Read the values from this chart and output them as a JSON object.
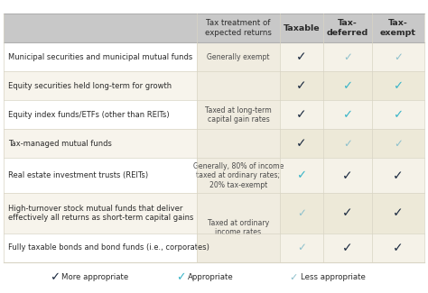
{
  "col_headers": [
    "Tax treatment of\nexpected returns",
    "Taxable",
    "Tax-\ndeferred",
    "Tax-\nexempt"
  ],
  "rows": [
    {
      "label": "Municipal securities and municipal mutual funds",
      "taxable": "more",
      "deferred": "less",
      "exempt": "less",
      "tax_group": 0
    },
    {
      "label": "Equity securities held long-term for growth",
      "taxable": "more",
      "deferred": "appropriate",
      "exempt": "appropriate",
      "tax_group": 1
    },
    {
      "label": "Equity index funds/ETFs (other than REITs)",
      "taxable": "more",
      "deferred": "appropriate",
      "exempt": "appropriate",
      "tax_group": 1
    },
    {
      "label": "Tax-managed mutual funds",
      "taxable": "more",
      "deferred": "less",
      "exempt": "less",
      "tax_group": 1
    },
    {
      "label": "Real estate investment trusts (REITs)",
      "taxable": "appropriate",
      "deferred": "more",
      "exempt": "more",
      "tax_group": 2
    },
    {
      "label": "High-turnover stock mutual funds that deliver\neffectively all returns as short-term capital gains",
      "taxable": "less",
      "deferred": "more",
      "exempt": "more",
      "tax_group": 3
    },
    {
      "label": "Fully taxable bonds and bond funds (i.e., corporates)",
      "taxable": "less",
      "deferred": "more",
      "exempt": "more",
      "tax_group": 3
    }
  ],
  "tax_groups": [
    {
      "rows": [
        0,
        0
      ],
      "text": "Generally exempt"
    },
    {
      "rows": [
        1,
        3
      ],
      "text": "Taxed at long-term\ncapital gain rates"
    },
    {
      "rows": [
        4,
        4
      ],
      "text": "Generally, 80% of income\ntaxed at ordinary rates;\n20% tax-exempt"
    },
    {
      "rows": [
        5,
        6
      ],
      "text": "Taxed at ordinary\nincome rates"
    }
  ],
  "row_heights": [
    1.0,
    1.0,
    1.0,
    1.0,
    1.2,
    1.4,
    1.0
  ],
  "colors": {
    "header_bg": "#c8c8c8",
    "row_bg_even": "#f7f4ec",
    "row_bg_odd": "#ffffff",
    "check_col_bg_even": "#ede9d8",
    "check_col_bg_odd": "#f5f2e8",
    "tax_col_bg": "#f0ece0",
    "check_dark": "#1b2a40",
    "check_teal": "#3ab5c8",
    "check_light": "#8dc0cc",
    "text_dark": "#2a2a2a",
    "text_gray": "#4a4a4a",
    "border_light": "#d8d4c4",
    "border_header": "#b0b0b0",
    "legend_bg": "#ffffff"
  },
  "font_sizes": {
    "header_main": 6.2,
    "header_col": 6.8,
    "row_label": 6.0,
    "tax_text": 5.6,
    "check": 9.5,
    "legend_check": 9.0,
    "legend_text": 6.2
  }
}
